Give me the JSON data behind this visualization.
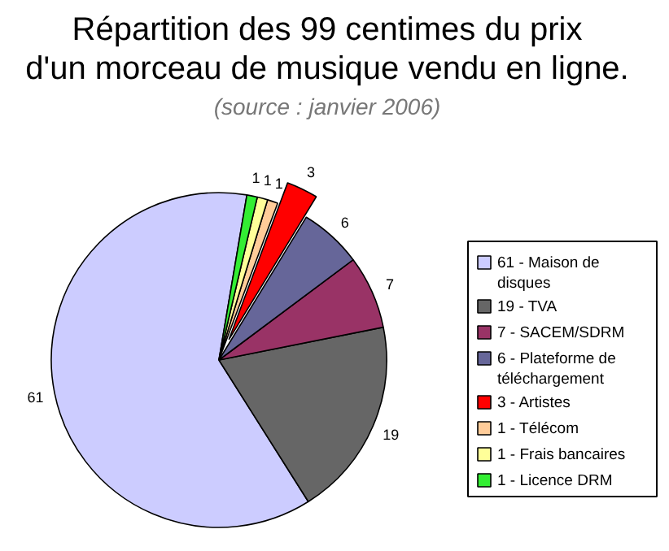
{
  "chart_data": {
    "type": "pie",
    "title": "Répartition des 99 centimes du prix\nd'un morceau de musique vendu en ligne.",
    "subtitle": "(source : janvier 2006)",
    "categories": [
      "61 - Maison de disques",
      "19 - TVA",
      "7 - SACEM/SDRM",
      "6 - Plateforme de téléchargement",
      "3 - Artistes",
      "1 - Télécom",
      "1 - Frais bancaires",
      "1 - Licence DRM"
    ],
    "values": [
      61,
      19,
      7,
      6,
      3,
      1,
      1,
      1
    ],
    "colors": [
      "#ccccff",
      "#666666",
      "#993366",
      "#666699",
      "#ff0000",
      "#ffcc99",
      "#ffff99",
      "#33ee33"
    ],
    "data_labels": true,
    "legend": "right"
  }
}
